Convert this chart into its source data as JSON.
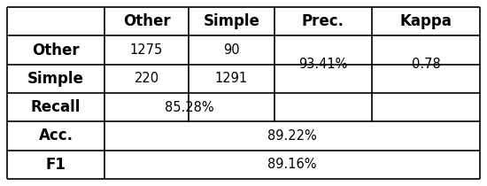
{
  "header": [
    "",
    "Other",
    "Simple",
    "Prec.",
    "Kappa"
  ],
  "row_other": [
    "Other",
    "1275",
    "90",
    "93.41%",
    "0.78"
  ],
  "row_simple": [
    "Simple",
    "220",
    "1291",
    "",
    ""
  ],
  "row_recall": [
    "Recall",
    "85.28%",
    "",
    "",
    ""
  ],
  "row_acc": [
    "Acc.",
    "89.22%",
    "",
    "",
    ""
  ],
  "row_f1": [
    "F1",
    "89.16%",
    "",
    "",
    ""
  ],
  "bg_color": "#ffffff",
  "text_color": "#000000"
}
